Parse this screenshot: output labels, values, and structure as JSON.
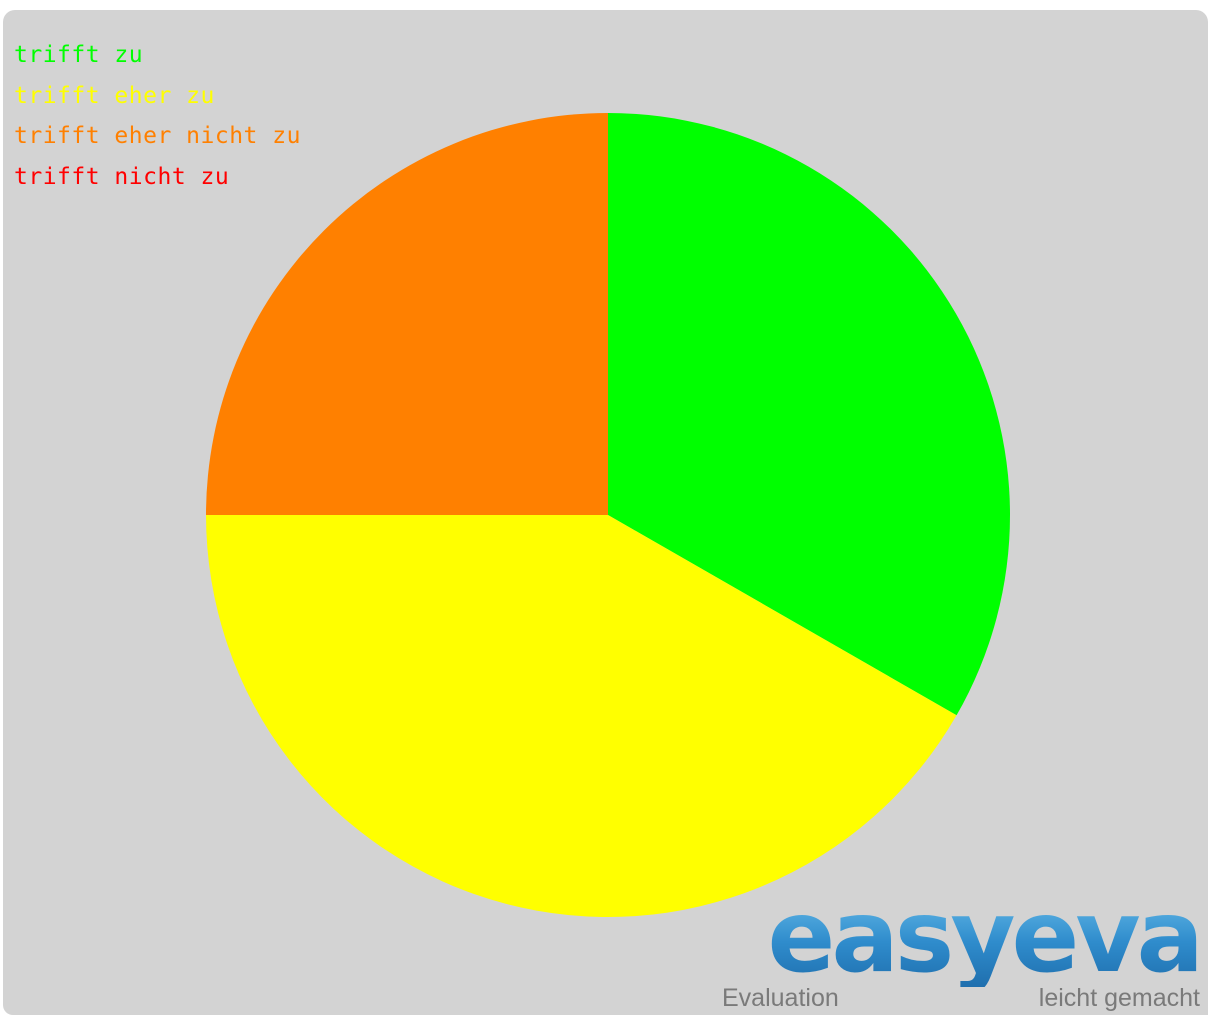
{
  "chart_data": {
    "type": "pie",
    "slices": [
      {
        "label": "trifft zu",
        "value": 0.333,
        "color": "#00ff00"
      },
      {
        "label": "trifft eher zu",
        "value": 0.417,
        "color": "#ffff00"
      },
      {
        "label": "trifft eher nicht zu",
        "value": 0.25,
        "color": "#ff8000"
      },
      {
        "label": "trifft nicht zu",
        "value": 0.0,
        "color": "#ff0000"
      }
    ],
    "start_angle": "12 o'clock",
    "direction": "clockwise",
    "legend_placement": "top-left",
    "background_color": "#d3d3d3"
  },
  "branding": {
    "wordmark": "easyeva",
    "tagline_left": "Evaluation",
    "tagline_right": "leicht gemacht",
    "color": "#3f9bd2"
  }
}
